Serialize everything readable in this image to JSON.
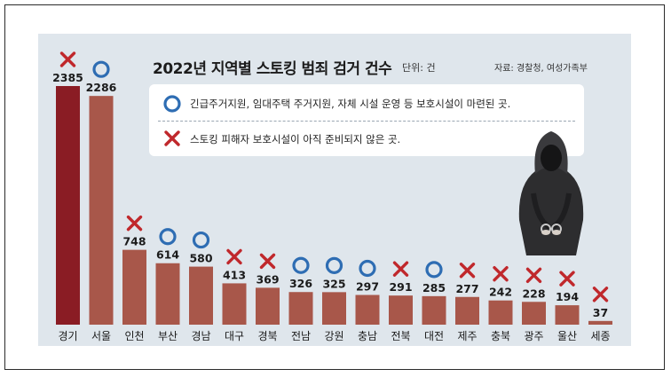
{
  "title": "2022년 지역별 스토킹 범죄 검거 건수",
  "unit": "단위: 건",
  "source": "자료: 경찰청, 여성가족부",
  "legend": {
    "circle_text": "긴급주거지원, 임대주택 주거지원, 자체 시설 운영 등 보호시설이 마련된 곳.",
    "cross_text": "스토킹 피해자 보호시설이 아직 준비되지 않은 곳."
  },
  "colors": {
    "bar_highlight": "#8a1c24",
    "bar": "#a8574a",
    "cross": "#c0282c",
    "circle": "#2e6db3",
    "panel": "#dfe6ec"
  },
  "chart_data": {
    "type": "bar",
    "title": "2022년 지역별 스토킹 범죄 검거 건수",
    "categories": [
      "경기",
      "서울",
      "인천",
      "부산",
      "경남",
      "대구",
      "경북",
      "전남",
      "강원",
      "충남",
      "전북",
      "대전",
      "제주",
      "충북",
      "광주",
      "울산",
      "세종"
    ],
    "values": [
      2385,
      2286,
      748,
      614,
      580,
      413,
      369,
      326,
      325,
      297,
      291,
      285,
      277,
      242,
      228,
      194,
      37
    ],
    "markers": [
      "x",
      "o",
      "x",
      "o",
      "o",
      "x",
      "x",
      "o",
      "o",
      "o",
      "x",
      "o",
      "x",
      "x",
      "x",
      "x",
      "x"
    ],
    "highlight_index": 0,
    "ylim": [
      0,
      2385
    ],
    "xlabel": "",
    "ylabel": ""
  }
}
